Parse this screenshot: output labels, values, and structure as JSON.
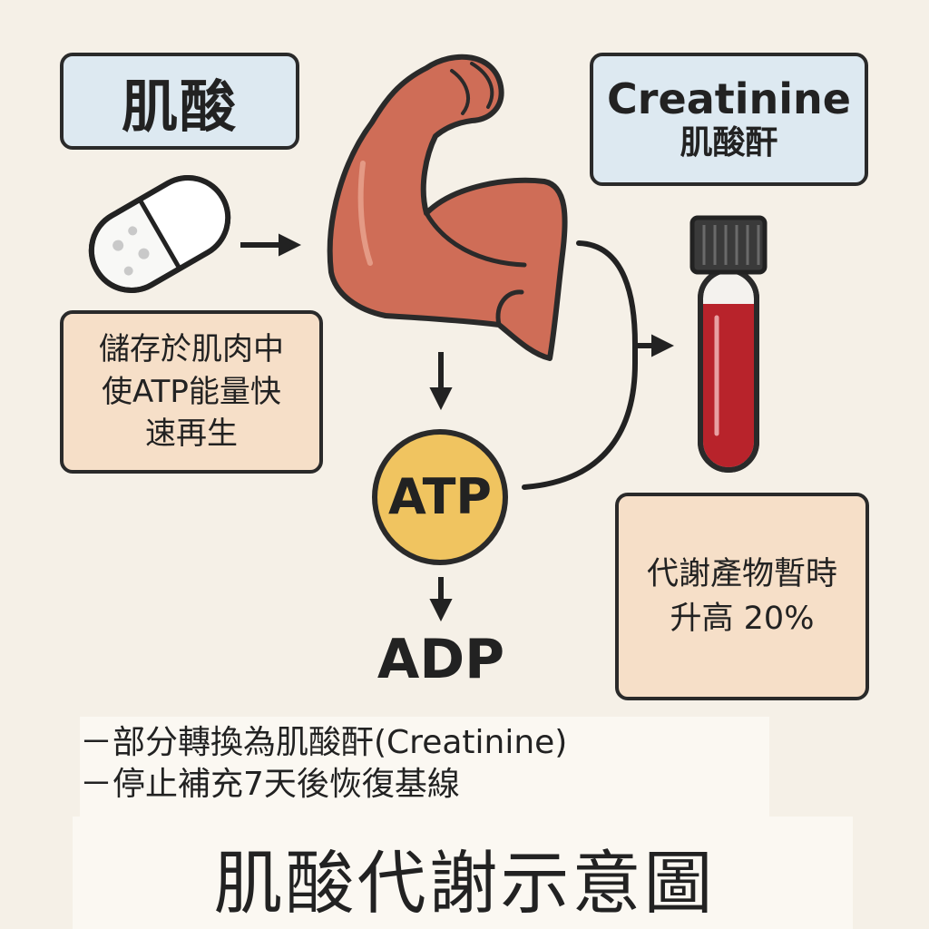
{
  "title_box": {
    "label": "肌酸"
  },
  "creatinine_box": {
    "label_en": "Creatinine",
    "label_zh": "肌酸酐"
  },
  "storage_box": {
    "lines": [
      "儲存於肌肉中",
      "使ATP能量快",
      "速再生"
    ]
  },
  "metabolite_box": {
    "lines": [
      "代謝產物暫時",
      "升高 20%"
    ]
  },
  "atp_label": "ATP",
  "adp_label": "ADP",
  "notes": {
    "line1": "－部分轉換為肌酸酐(Creatinine)",
    "line2": "－停止補充7天後恢復基線"
  },
  "main_title": "肌酸代謝示意圖",
  "colors": {
    "background": "#f5f0e7",
    "blue_box": "#dde9f1",
    "peach_box": "#f6dfc8",
    "atp_circle": "#f0c460",
    "muscle": "#cf6d57",
    "blood": "#b8232b"
  },
  "icons": [
    "capsule-icon",
    "flexed-arm-icon",
    "blood-tube-icon"
  ]
}
